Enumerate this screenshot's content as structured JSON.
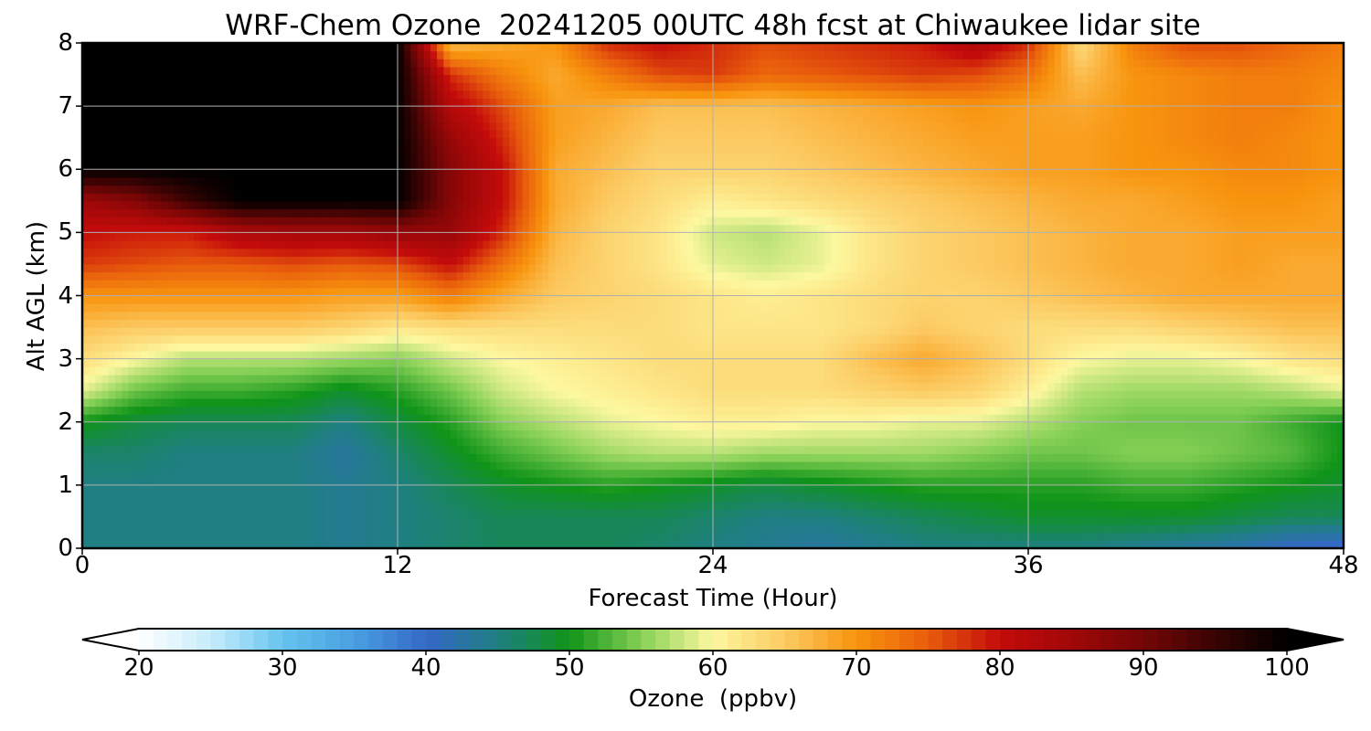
{
  "chart_data": {
    "type": "heatmap",
    "title": "WRF-Chem Ozone  20241205 00UTC 48h fcst at Chiwaukee lidar site",
    "xlabel": "Forecast Time (Hour)",
    "ylabel": "Alt AGL (km)",
    "xlim": [
      0,
      48
    ],
    "ylim": [
      0,
      8
    ],
    "xticks": [
      "0",
      "12",
      "24",
      "36",
      "48"
    ],
    "yticks": [
      "0",
      "1",
      "2",
      "3",
      "4",
      "5",
      "6",
      "7",
      "8"
    ],
    "grid": true,
    "colorbar": {
      "label": "Ozone  (ppbv)",
      "range": [
        20,
        100
      ],
      "ticks": [
        "20",
        "30",
        "40",
        "50",
        "60",
        "70",
        "80",
        "90",
        "100"
      ],
      "extend": "both",
      "colors": [
        {
          "v": 20,
          "c": "#ffffff"
        },
        {
          "v": 25,
          "c": "#c6ecfa"
        },
        {
          "v": 30,
          "c": "#66c4f0"
        },
        {
          "v": 35,
          "c": "#4a9fe0"
        },
        {
          "v": 40,
          "c": "#3568c8"
        },
        {
          "v": 45,
          "c": "#1f7f82"
        },
        {
          "v": 50,
          "c": "#0f9418"
        },
        {
          "v": 55,
          "c": "#86d056"
        },
        {
          "v": 60,
          "c": "#fdf8a0"
        },
        {
          "v": 65,
          "c": "#fcca62"
        },
        {
          "v": 70,
          "c": "#f8940e"
        },
        {
          "v": 75,
          "c": "#e85c0c"
        },
        {
          "v": 80,
          "c": "#c40b0b"
        },
        {
          "v": 85,
          "c": "#a00808"
        },
        {
          "v": 90,
          "c": "#740606"
        },
        {
          "v": 95,
          "c": "#3a0303"
        },
        {
          "v": 100,
          "c": "#000000"
        }
      ]
    },
    "x_hours": [
      0,
      2,
      4,
      6,
      8,
      10,
      12,
      14,
      16,
      18,
      20,
      22,
      24,
      26,
      28,
      30,
      32,
      34,
      36,
      38,
      40,
      42,
      44,
      46,
      48
    ],
    "y_km": [
      0,
      0.5,
      1,
      1.5,
      2,
      2.5,
      3,
      3.5,
      4,
      4.5,
      5,
      5.5,
      6,
      6.5,
      7,
      7.5,
      8
    ],
    "ozone_ppbv": [
      [
        45,
        45,
        45,
        45,
        45,
        44,
        45,
        46,
        47,
        47,
        47,
        46,
        45,
        44,
        43,
        44,
        45,
        45,
        45,
        45,
        44,
        43,
        42,
        40,
        39
      ],
      [
        45,
        45,
        45,
        45,
        45,
        44,
        45,
        46,
        47,
        47,
        47,
        47,
        46,
        45,
        45,
        46,
        47,
        48,
        49,
        49,
        49,
        49,
        48,
        47,
        47
      ],
      [
        45,
        45,
        45,
        45,
        45,
        44,
        45,
        47,
        49,
        50,
        51,
        50,
        49,
        48,
        49,
        50,
        51,
        51,
        51,
        51,
        52,
        52,
        51,
        50,
        49
      ],
      [
        46,
        46,
        45,
        45,
        45,
        43,
        46,
        49,
        52,
        54,
        56,
        57,
        57,
        56,
        56,
        56,
        56,
        55,
        54,
        54,
        55,
        55,
        54,
        53,
        50
      ],
      [
        50,
        48,
        47,
        47,
        47,
        45,
        48,
        51,
        55,
        57,
        59,
        60,
        61,
        61,
        60,
        60,
        59,
        59,
        57,
        55,
        54,
        54,
        54,
        52,
        50
      ],
      [
        59,
        54,
        52,
        52,
        51,
        49,
        51,
        54,
        58,
        60,
        61,
        62,
        63,
        63,
        63,
        64,
        65,
        64,
        61,
        57,
        56,
        56,
        56,
        57,
        59
      ],
      [
        63,
        60,
        57,
        57,
        57,
        56,
        55,
        58,
        60,
        61,
        62,
        63,
        63,
        63,
        63,
        66,
        68,
        66,
        63,
        60,
        59,
        59,
        60,
        62,
        63
      ],
      [
        66,
        65,
        65,
        65,
        65,
        64,
        62,
        63,
        63,
        63,
        63,
        63,
        62,
        62,
        62,
        63,
        65,
        64,
        63,
        63,
        63,
        64,
        65,
        66,
        66
      ],
      [
        70,
        70,
        70,
        70,
        70,
        69,
        69,
        72,
        68,
        65,
        64,
        63,
        62,
        61,
        62,
        63,
        64,
        64,
        65,
        66,
        67,
        68,
        68,
        68,
        68
      ],
      [
        77,
        76,
        75,
        75,
        76,
        75,
        76,
        80,
        73,
        66,
        64,
        62,
        59,
        58,
        59,
        62,
        64,
        65,
        66,
        67,
        68,
        68,
        69,
        68,
        68
      ],
      [
        80,
        79,
        79,
        83,
        84,
        84,
        86,
        86,
        78,
        67,
        64,
        62,
        58,
        57,
        59,
        62,
        64,
        65,
        66,
        67,
        68,
        68,
        69,
        69,
        69
      ],
      [
        85,
        88,
        95,
        100,
        100,
        100,
        100,
        88,
        80,
        68,
        65,
        63,
        61,
        62,
        63,
        64,
        65,
        66,
        67,
        68,
        68,
        69,
        70,
        70,
        69
      ],
      [
        100,
        100,
        100,
        100,
        100,
        100,
        100,
        88,
        80,
        68,
        66,
        64,
        64,
        64,
        65,
        66,
        67,
        68,
        69,
        69,
        70,
        70,
        71,
        71,
        70
      ],
      [
        100,
        100,
        100,
        100,
        100,
        100,
        100,
        86,
        78,
        69,
        67,
        65,
        65,
        65,
        66,
        67,
        68,
        69,
        69,
        69,
        70,
        71,
        72,
        71,
        70
      ],
      [
        100,
        100,
        100,
        100,
        100,
        100,
        100,
        82,
        76,
        69,
        68,
        66,
        66,
        66,
        67,
        68,
        69,
        70,
        69,
        68,
        70,
        71,
        72,
        72,
        70
      ],
      [
        100,
        100,
        100,
        100,
        100,
        100,
        100,
        78,
        72,
        68,
        72,
        76,
        77,
        74,
        75,
        76,
        77,
        76,
        73,
        66,
        70,
        71,
        72,
        72,
        71
      ],
      [
        100,
        100,
        100,
        100,
        100,
        100,
        100,
        66,
        68,
        70,
        78,
        80,
        78,
        76,
        77,
        78,
        79,
        83,
        78,
        63,
        72,
        76,
        76,
        74,
        72
      ]
    ]
  }
}
